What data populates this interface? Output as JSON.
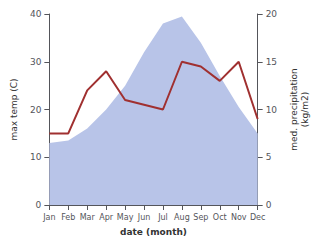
{
  "chart_data": {
    "type": "line",
    "xlabel": "date (month)",
    "ylabel": "max temp (C)",
    "y2label": "med. precipitation\n(kg/m2)",
    "categories": [
      "Jan",
      "Feb",
      "Mar",
      "Apr",
      "May",
      "Jun",
      "Jul",
      "Aug",
      "Sep",
      "Oct",
      "Nov",
      "Dec"
    ],
    "series": [
      {
        "type": "area",
        "color": "#b8c4e8",
        "values": [
          13.0,
          13.5,
          16.0,
          20.0,
          25.0,
          32.0,
          38.0,
          39.5,
          34.0,
          27.0,
          20.5,
          15.0
        ]
      },
      {
        "type": "line",
        "color": "#a03030",
        "axis": "y2",
        "values": [
          7.5,
          7.5,
          12.0,
          14.0,
          11.0,
          10.5,
          10.0,
          15.0,
          14.5,
          13.0,
          15.0,
          9.0
        ]
      }
    ],
    "ylim": [
      0,
      40
    ],
    "yticks": [
      0,
      10,
      20,
      30,
      40
    ],
    "y2lim": [
      0,
      20
    ],
    "y2ticks": [
      0,
      5,
      10,
      15,
      20
    ],
    "grid": false
  }
}
